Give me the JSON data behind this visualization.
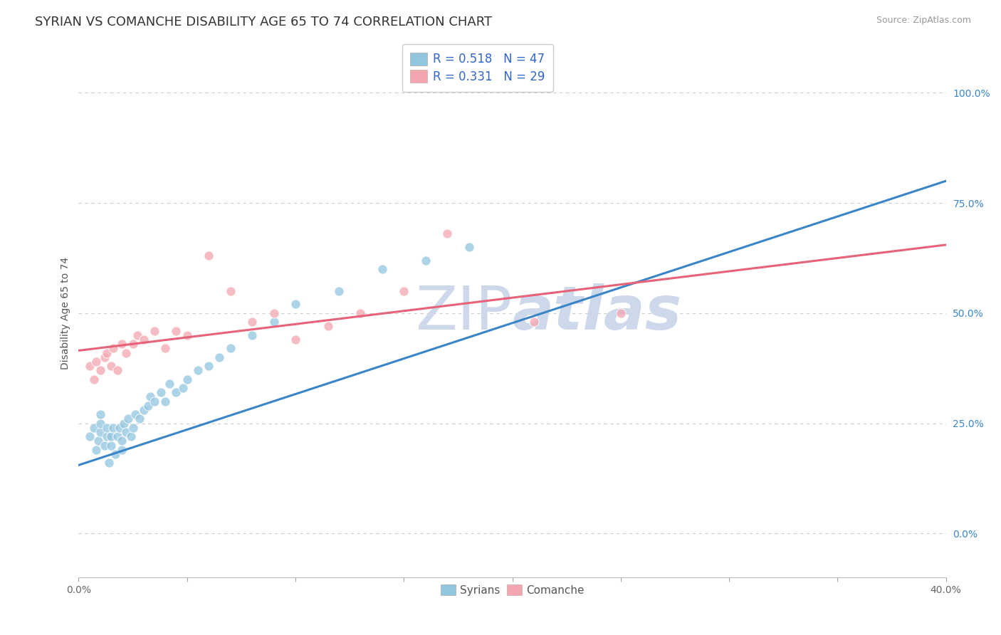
{
  "title": "SYRIAN VS COMANCHE DISABILITY AGE 65 TO 74 CORRELATION CHART",
  "source_text": "Source: ZipAtlas.com",
  "ylabel": "Disability Age 65 to 74",
  "xlim": [
    0.0,
    0.4
  ],
  "ylim": [
    -0.1,
    1.1
  ],
  "xticks": [
    0.0,
    0.05,
    0.1,
    0.15,
    0.2,
    0.25,
    0.3,
    0.35,
    0.4
  ],
  "yticks": [
    0.0,
    0.25,
    0.5,
    0.75,
    1.0
  ],
  "ytick_labels": [
    "0.0%",
    "25.0%",
    "50.0%",
    "75.0%",
    "100.0%"
  ],
  "xtick_labels": [
    "0.0%",
    "",
    "",
    "",
    "",
    "",
    "",
    "",
    "40.0%"
  ],
  "legend_label1": "R = 0.518   N = 47",
  "legend_label2": "R = 0.331   N = 29",
  "legend_bottom_label1": "Syrians",
  "legend_bottom_label2": "Comanche",
  "color_blue": "#92c5de",
  "color_pink": "#f4a6b0",
  "color_line_blue": "#3a85c8",
  "color_line_pink": "#e8637a",
  "watermark_color": "#cdd8ea",
  "title_fontsize": 13,
  "axis_label_fontsize": 10,
  "tick_fontsize": 10,
  "blue_line_x0": 0.0,
  "blue_line_y0": 0.155,
  "blue_line_x1": 0.4,
  "blue_line_y1": 0.8,
  "pink_line_x0": 0.0,
  "pink_line_y0": 0.415,
  "pink_line_x1": 0.4,
  "pink_line_y1": 0.655,
  "syrians_x": [
    0.005,
    0.007,
    0.008,
    0.009,
    0.01,
    0.01,
    0.01,
    0.012,
    0.013,
    0.013,
    0.014,
    0.015,
    0.015,
    0.016,
    0.017,
    0.018,
    0.019,
    0.02,
    0.02,
    0.021,
    0.022,
    0.023,
    0.024,
    0.025,
    0.026,
    0.028,
    0.03,
    0.032,
    0.033,
    0.035,
    0.038,
    0.04,
    0.042,
    0.045,
    0.048,
    0.05,
    0.055,
    0.06,
    0.065,
    0.07,
    0.08,
    0.09,
    0.1,
    0.12,
    0.14,
    0.16,
    0.18
  ],
  "syrians_y": [
    0.22,
    0.24,
    0.19,
    0.21,
    0.23,
    0.25,
    0.27,
    0.2,
    0.22,
    0.24,
    0.16,
    0.2,
    0.22,
    0.24,
    0.18,
    0.22,
    0.24,
    0.19,
    0.21,
    0.25,
    0.23,
    0.26,
    0.22,
    0.24,
    0.27,
    0.26,
    0.28,
    0.29,
    0.31,
    0.3,
    0.32,
    0.3,
    0.34,
    0.32,
    0.33,
    0.35,
    0.37,
    0.38,
    0.4,
    0.42,
    0.45,
    0.48,
    0.52,
    0.55,
    0.6,
    0.62,
    0.65
  ],
  "comanche_x": [
    0.005,
    0.007,
    0.008,
    0.01,
    0.012,
    0.013,
    0.015,
    0.016,
    0.018,
    0.02,
    0.022,
    0.025,
    0.027,
    0.03,
    0.035,
    0.04,
    0.045,
    0.05,
    0.06,
    0.07,
    0.08,
    0.09,
    0.1,
    0.115,
    0.13,
    0.15,
    0.17,
    0.21,
    0.25
  ],
  "comanche_y": [
    0.38,
    0.35,
    0.39,
    0.37,
    0.4,
    0.41,
    0.38,
    0.42,
    0.37,
    0.43,
    0.41,
    0.43,
    0.45,
    0.44,
    0.46,
    0.42,
    0.46,
    0.45,
    0.63,
    0.55,
    0.48,
    0.5,
    0.44,
    0.47,
    0.5,
    0.55,
    0.68,
    0.48,
    0.5
  ]
}
